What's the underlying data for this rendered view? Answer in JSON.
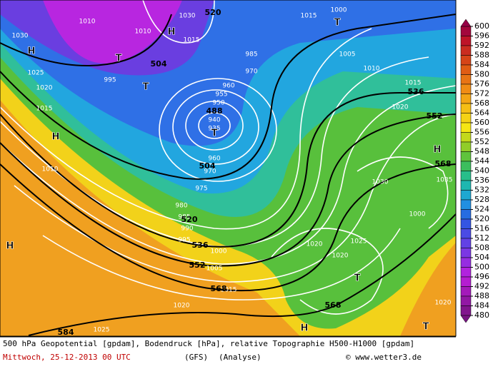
{
  "map": {
    "isobar_labels": [
      "1030",
      "1010",
      "1025",
      "1020",
      "1015",
      "995",
      "1010",
      "1030",
      "1015",
      "1000",
      "1015",
      "1005",
      "1010",
      "1015",
      "1020",
      "985",
      "970",
      "960",
      "955",
      "950",
      "940",
      "935",
      "960",
      "970",
      "975",
      "980",
      "985",
      "990",
      "995",
      "1000",
      "1005",
      "1015",
      "1020",
      "1025",
      "1010",
      "1030",
      "1035",
      "1000",
      "1020",
      "1025",
      "1020",
      "1020"
    ],
    "geopotential_labels": [
      "504",
      "520",
      "488",
      "504",
      "520",
      "536",
      "552",
      "568",
      "584",
      "568",
      "552",
      "536",
      "568"
    ],
    "pressure_symbols": [
      "H",
      "T",
      "T",
      "H",
      "T",
      "T",
      "H",
      "H",
      "T",
      "H",
      "T",
      "H"
    ]
  },
  "colorbar": {
    "ticks": [
      600,
      596,
      592,
      588,
      584,
      580,
      576,
      572,
      568,
      564,
      560,
      556,
      552,
      548,
      544,
      540,
      536,
      532,
      528,
      524,
      520,
      516,
      512,
      508,
      504,
      500,
      496,
      492,
      488,
      484,
      480
    ]
  },
  "caption": {
    "line1": "500 hPa Geopotential [gpdam], Bodendruck [hPa], relative Topographie H500-H1000 [gpdam]",
    "date": "Mittwoch, 25-12-2013  00 UTC",
    "model": "(GFS)",
    "run": "(Analyse)",
    "credit": "© www.wetter3.de"
  }
}
